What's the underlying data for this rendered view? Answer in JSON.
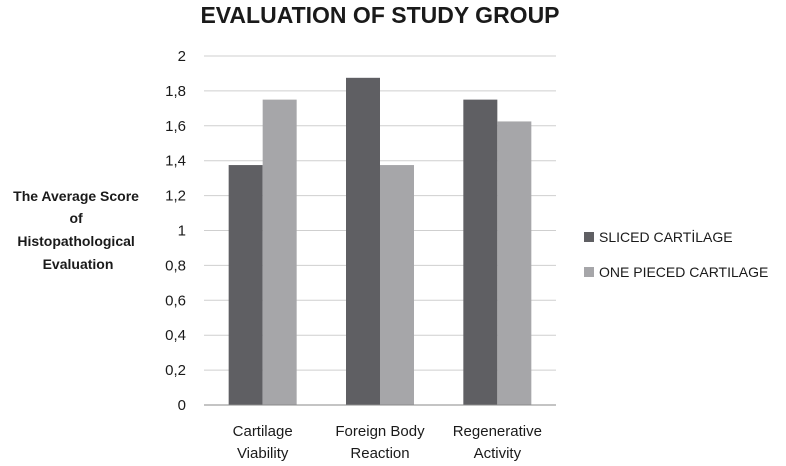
{
  "chart_data": {
    "type": "bar",
    "title": "EVALUATION OF STUDY GROUP",
    "ylabel": [
      "The Average Score",
      "of",
      "Histopathological",
      "Evaluation"
    ],
    "xlabel": "",
    "categories": [
      [
        "Cartilage",
        "Viability"
      ],
      [
        "Foreign Body",
        "Reaction"
      ],
      [
        "Regenerative",
        "Activity"
      ]
    ],
    "series": [
      {
        "name": "SLICED CARTİLAGE",
        "color": "#5f5f63",
        "values": [
          1.375,
          1.875,
          1.75
        ]
      },
      {
        "name": "ONE PIECED CARTILAGE",
        "color": "#a6a6a9",
        "values": [
          1.75,
          1.375,
          1.625
        ]
      }
    ],
    "ylim": [
      0,
      2
    ],
    "yticks": [
      "0",
      "0,2",
      "0,4",
      "0,6",
      "0,8",
      "1",
      "1,2",
      "1,4",
      "1,6",
      "1,8",
      "2"
    ],
    "grid": true,
    "legend_position": "right"
  }
}
